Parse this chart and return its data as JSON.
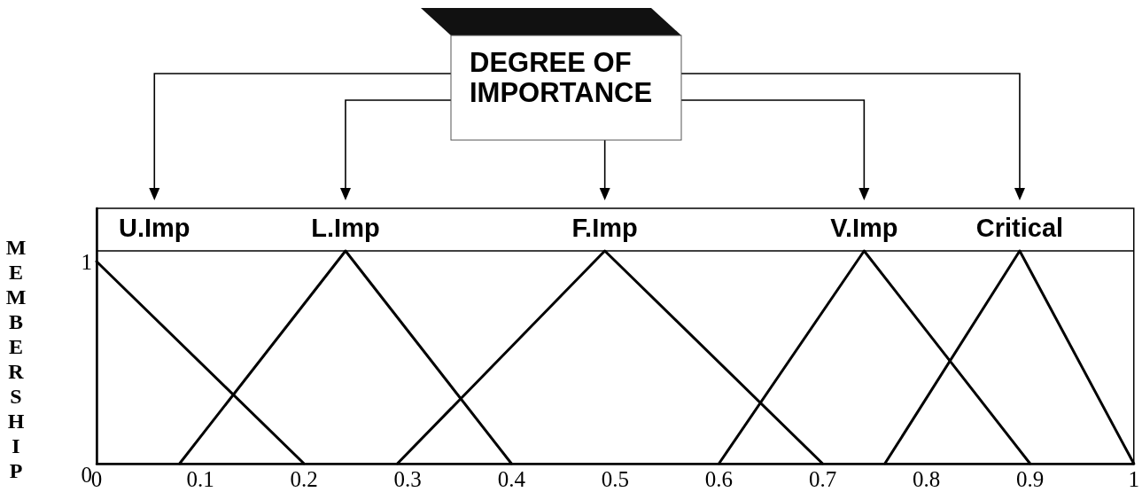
{
  "chart_data": {
    "type": "line",
    "title": "DEGREE OF IMPORTANCE",
    "ylabel": "MEMBERSHIP",
    "xlim": [
      0,
      1
    ],
    "xticks": [
      0,
      0.1,
      0.2,
      0.3,
      0.4,
      0.5,
      0.6,
      0.7,
      0.8,
      0.9,
      1
    ],
    "ylim": [
      0,
      1.2
    ],
    "yticks": [
      0,
      1
    ],
    "marker": "none",
    "legend": "top",
    "ref_lines": [
      {
        "axis": "y",
        "value": 1
      }
    ],
    "series": [
      {
        "name": "U.Imp",
        "color": "#000000",
        "x": [
          0,
          0.2
        ],
        "values": [
          0.95,
          0
        ]
      },
      {
        "name": "L.Imp",
        "color": "#000000",
        "x": [
          0.08,
          0.24,
          0.4
        ],
        "values": [
          0,
          1,
          0
        ]
      },
      {
        "name": "F.Imp",
        "color": "#000000",
        "x": [
          0.29,
          0.49,
          0.7
        ],
        "values": [
          0,
          1,
          0
        ]
      },
      {
        "name": "V.Imp",
        "color": "#000000",
        "x": [
          0.6,
          0.74,
          0.9
        ],
        "values": [
          0,
          1,
          0
        ]
      },
      {
        "name": "Critical",
        "color": "#000000",
        "x": [
          0.76,
          0.89,
          1
        ],
        "values": [
          0,
          1,
          0
        ]
      }
    ]
  }
}
